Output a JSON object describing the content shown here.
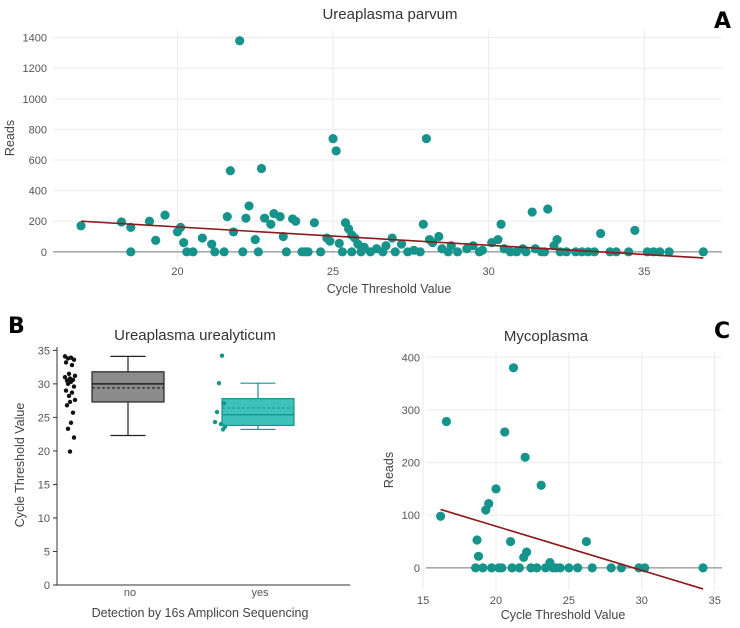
{
  "colors": {
    "teal": "#16938a",
    "trend": "#8b1a1a",
    "box_no": "#8c8c8c",
    "box_yes": "#3fc1bb",
    "black_points": "#111111"
  },
  "panels": {
    "a": "A",
    "b": "B",
    "c": "C"
  },
  "chart_data": [
    {
      "id": "A",
      "type": "scatter",
      "title": "Ureaplasma parvum",
      "xlabel": "Cycle Threshold Value",
      "ylabel": "Reads",
      "xlim": [
        16,
        37.5
      ],
      "ylim": [
        -60,
        1450
      ],
      "xticks": [
        20,
        25,
        30,
        35
      ],
      "yticks": [
        0,
        200,
        400,
        600,
        800,
        1000,
        1200,
        1400
      ],
      "grid": true,
      "trend": {
        "x": [
          16.9,
          36.9
        ],
        "y": [
          200,
          -40
        ]
      },
      "points": [
        [
          16.9,
          170
        ],
        [
          18.2,
          195
        ],
        [
          18.5,
          160
        ],
        [
          18.5,
          0
        ],
        [
          19.1,
          200
        ],
        [
          19.3,
          75
        ],
        [
          19.6,
          240
        ],
        [
          20.0,
          130
        ],
        [
          20.1,
          160
        ],
        [
          20.2,
          60
        ],
        [
          20.3,
          0
        ],
        [
          20.5,
          0
        ],
        [
          20.8,
          90
        ],
        [
          21.1,
          50
        ],
        [
          21.2,
          0
        ],
        [
          21.5,
          0
        ],
        [
          21.6,
          230
        ],
        [
          21.7,
          530
        ],
        [
          21.8,
          130
        ],
        [
          22.0,
          1380
        ],
        [
          22.1,
          0
        ],
        [
          22.2,
          220
        ],
        [
          22.3,
          300
        ],
        [
          22.5,
          80
        ],
        [
          22.6,
          0
        ],
        [
          22.7,
          545
        ],
        [
          22.8,
          220
        ],
        [
          23.0,
          180
        ],
        [
          23.1,
          250
        ],
        [
          23.3,
          230
        ],
        [
          23.4,
          100
        ],
        [
          23.5,
          0
        ],
        [
          23.7,
          215
        ],
        [
          23.8,
          200
        ],
        [
          24.0,
          0
        ],
        [
          24.1,
          0
        ],
        [
          24.2,
          0
        ],
        [
          24.4,
          190
        ],
        [
          24.6,
          0
        ],
        [
          24.8,
          90
        ],
        [
          24.9,
          70
        ],
        [
          25.0,
          740
        ],
        [
          25.1,
          660
        ],
        [
          25.2,
          55
        ],
        [
          25.3,
          0
        ],
        [
          25.4,
          190
        ],
        [
          25.5,
          150
        ],
        [
          25.6,
          110
        ],
        [
          25.6,
          0
        ],
        [
          25.7,
          90
        ],
        [
          25.8,
          50
        ],
        [
          25.9,
          0
        ],
        [
          26.0,
          30
        ],
        [
          26.2,
          0
        ],
        [
          26.4,
          20
        ],
        [
          26.6,
          0
        ],
        [
          26.7,
          40
        ],
        [
          26.9,
          90
        ],
        [
          27.0,
          0
        ],
        [
          27.2,
          50
        ],
        [
          27.4,
          0
        ],
        [
          27.6,
          10
        ],
        [
          27.8,
          0
        ],
        [
          27.9,
          180
        ],
        [
          28.0,
          740
        ],
        [
          28.1,
          80
        ],
        [
          28.2,
          60
        ],
        [
          28.4,
          100
        ],
        [
          28.5,
          20
        ],
        [
          28.7,
          0
        ],
        [
          28.8,
          40
        ],
        [
          29.0,
          0
        ],
        [
          29.3,
          20
        ],
        [
          29.5,
          40
        ],
        [
          29.7,
          0
        ],
        [
          29.8,
          10
        ],
        [
          30.1,
          60
        ],
        [
          30.3,
          80
        ],
        [
          30.4,
          180
        ],
        [
          30.5,
          20
        ],
        [
          30.7,
          0
        ],
        [
          30.9,
          0
        ],
        [
          31.1,
          20
        ],
        [
          31.2,
          0
        ],
        [
          31.4,
          260
        ],
        [
          31.5,
          20
        ],
        [
          31.7,
          0
        ],
        [
          31.8,
          0
        ],
        [
          31.9,
          280
        ],
        [
          32.1,
          40
        ],
        [
          32.2,
          80
        ],
        [
          32.3,
          0
        ],
        [
          32.5,
          0
        ],
        [
          32.8,
          0
        ],
        [
          33.0,
          0
        ],
        [
          33.2,
          0
        ],
        [
          33.4,
          0
        ],
        [
          33.6,
          120
        ],
        [
          33.9,
          0
        ],
        [
          34.1,
          0
        ],
        [
          34.5,
          0
        ],
        [
          34.7,
          140
        ],
        [
          35.1,
          0
        ],
        [
          35.3,
          0
        ],
        [
          35.5,
          0
        ],
        [
          35.8,
          0
        ],
        [
          36.9,
          0
        ]
      ]
    },
    {
      "id": "B",
      "type": "box",
      "title": "Ureaplasma urealyticum",
      "xlabel": "Detection by 16s Amplicon Sequencing",
      "ylabel": "Cycle Threshold Value",
      "ylim": [
        0,
        35.5
      ],
      "yticks": [
        0,
        5,
        10,
        15,
        20,
        25,
        30,
        35
      ],
      "categories": [
        "no",
        "yes"
      ],
      "boxes": [
        {
          "category": "no",
          "min": 22.3,
          "q1": 27.3,
          "median": 30.0,
          "mean": 29.4,
          "q3": 31.8,
          "max": 34.1
        },
        {
          "category": "yes",
          "min": 23.2,
          "q1": 23.8,
          "median": 25.4,
          "mean": 26.4,
          "q3": 27.8,
          "max": 30.1
        }
      ],
      "jitter": {
        "no": [
          34.1,
          33.9,
          33.8,
          33.6,
          33.2,
          32.8,
          31.5,
          31.2,
          31.0,
          30.8,
          30.6,
          30.5,
          30.3,
          30.0,
          29.6,
          29.0,
          28.7,
          28.2,
          27.6,
          27.3,
          26.8,
          25.7,
          24.2,
          23.3,
          22.0,
          19.9
        ],
        "yes": [
          34.2,
          30.1,
          27.1,
          25.8,
          24.3,
          24.0,
          23.6,
          23.2
        ]
      }
    },
    {
      "id": "C",
      "type": "scatter",
      "title": "Mycoplasma",
      "xlabel": "Cycle Threshold Value",
      "ylabel": "Reads",
      "xlim": [
        15.2,
        35.5
      ],
      "ylim": [
        -42,
        410
      ],
      "xticks": [
        15,
        20,
        25,
        30,
        35
      ],
      "yticks": [
        0,
        100,
        200,
        300,
        400
      ],
      "grid": true,
      "trend": {
        "x": [
          16.2,
          34.2
        ],
        "y": [
          111,
          -40
        ]
      },
      "points": [
        [
          16.2,
          98
        ],
        [
          16.6,
          278
        ],
        [
          18.6,
          0
        ],
        [
          18.7,
          53
        ],
        [
          18.8,
          22
        ],
        [
          19.1,
          0
        ],
        [
          19.3,
          110
        ],
        [
          19.5,
          122
        ],
        [
          19.7,
          0
        ],
        [
          20.0,
          150
        ],
        [
          20.2,
          0
        ],
        [
          20.4,
          0
        ],
        [
          20.6,
          258
        ],
        [
          21.0,
          50
        ],
        [
          21.1,
          0
        ],
        [
          21.2,
          380
        ],
        [
          21.6,
          0
        ],
        [
          21.9,
          20
        ],
        [
          22.0,
          210
        ],
        [
          22.1,
          30
        ],
        [
          22.4,
          0
        ],
        [
          22.8,
          0
        ],
        [
          23.1,
          157
        ],
        [
          23.4,
          0
        ],
        [
          23.7,
          10
        ],
        [
          23.9,
          0
        ],
        [
          24.1,
          0
        ],
        [
          24.4,
          0
        ],
        [
          25.0,
          0
        ],
        [
          25.6,
          0
        ],
        [
          26.2,
          50
        ],
        [
          26.6,
          0
        ],
        [
          27.9,
          0
        ],
        [
          28.6,
          0
        ],
        [
          29.8,
          0
        ],
        [
          30.2,
          0
        ],
        [
          34.2,
          0
        ]
      ]
    }
  ]
}
